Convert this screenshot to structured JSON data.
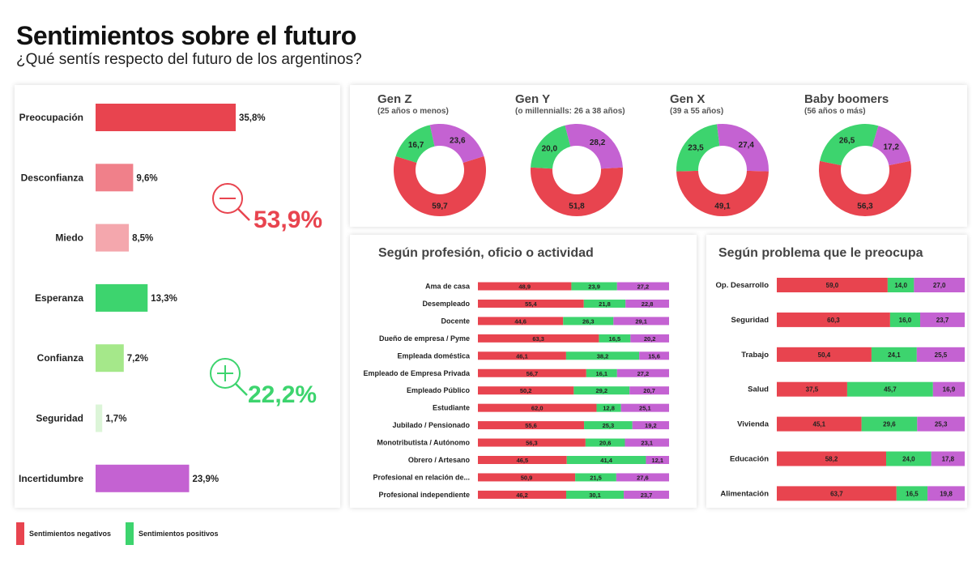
{
  "header": {
    "title": "Sentimientos sobre el futuro",
    "subtitle": "¿Qué sentís respecto del futuro de los argentinos?"
  },
  "colors": {
    "negative": "#e8444f",
    "positive": "#3dd46e",
    "purple": "#c462d2",
    "bar_desconfianza": "#f0808a",
    "bar_miedo": "#f4a7ad",
    "bar_confianza": "#a5e88a",
    "bar_seguridad": "#dcf5d8"
  },
  "summary": {
    "negative_total": "53,9%",
    "positive_total": "22,2%"
  },
  "legend": {
    "negative": "Sentimientos negativos",
    "positive": "Sentimientos positivos"
  },
  "chart_data": [
    {
      "type": "bar",
      "orientation": "horizontal",
      "categories": [
        "Preocupación",
        "Desconfianza",
        "Miedo",
        "Esperanza",
        "Confianza",
        "Seguridad",
        "Incertidumbre"
      ],
      "values": [
        35.8,
        9.6,
        8.5,
        13.3,
        7.2,
        1.7,
        23.9
      ],
      "labels": [
        "35,8%",
        "9,6%",
        "8,5%",
        "13,3%",
        "7,2%",
        "1,7%",
        "23,9%"
      ],
      "colors": [
        "#e8444f",
        "#f0808a",
        "#f4a7ad",
        "#3dd46e",
        "#a5e88a",
        "#dcf5d8",
        "#c462d2"
      ]
    },
    {
      "type": "pie",
      "donuts": [
        {
          "title": "Gen Z",
          "subtitle": "(25 años o menos)",
          "values": [
            59.7,
            16.7,
            23.6
          ],
          "labels": [
            "59,7",
            "16,7",
            "23,6"
          ]
        },
        {
          "title": "Gen Y",
          "subtitle": "(o millennialls: 26 a 38 años)",
          "values": [
            51.8,
            20.0,
            28.2
          ],
          "labels": [
            "51,8",
            "20,0",
            "28,2"
          ]
        },
        {
          "title": "Gen X",
          "subtitle": "(39 a 55 años)",
          "values": [
            49.1,
            23.5,
            27.4
          ],
          "labels": [
            "49,1",
            "23,5",
            "27,4"
          ]
        },
        {
          "title": "Baby boomers",
          "subtitle": "(56 años o más)",
          "values": [
            56.3,
            26.5,
            17.2
          ],
          "labels": [
            "56,3",
            "26,5",
            "17,2"
          ]
        }
      ]
    },
    {
      "type": "bar",
      "stacked": true,
      "title": "Según profesión, oficio o actividad",
      "rows": [
        {
          "label": "Ama de casa",
          "values": [
            48.9,
            23.9,
            27.2
          ],
          "labels": [
            "48,9",
            "23,9",
            "27,2"
          ]
        },
        {
          "label": "Desempleado",
          "values": [
            55.4,
            21.8,
            22.8
          ],
          "labels": [
            "55,4",
            "21,8",
            "22,8"
          ]
        },
        {
          "label": "Docente",
          "values": [
            44.6,
            26.3,
            29.1
          ],
          "labels": [
            "44,6",
            "26,3",
            "29,1"
          ]
        },
        {
          "label": "Dueño de empresa / Pyme",
          "values": [
            63.3,
            16.5,
            20.2
          ],
          "labels": [
            "63,3",
            "16,5",
            "20,2"
          ]
        },
        {
          "label": "Empleada doméstica",
          "values": [
            46.1,
            38.2,
            15.6
          ],
          "labels": [
            "46,1",
            "38,2",
            "15,6"
          ]
        },
        {
          "label": "Empleado de Empresa Privada",
          "values": [
            56.7,
            16.1,
            27.2
          ],
          "labels": [
            "56,7",
            "16,1",
            "27,2"
          ]
        },
        {
          "label": "Empleado Público",
          "values": [
            50.2,
            29.2,
            20.7
          ],
          "labels": [
            "50,2",
            "29,2",
            "20,7"
          ]
        },
        {
          "label": "Estudiante",
          "values": [
            62.0,
            12.8,
            25.1
          ],
          "labels": [
            "62,0",
            "12,8",
            "25,1"
          ]
        },
        {
          "label": "Jubilado / Pensionado",
          "values": [
            55.6,
            25.3,
            19.2
          ],
          "labels": [
            "55,6",
            "25,3",
            "19,2"
          ]
        },
        {
          "label": "Monotributista / Autónomo",
          "values": [
            56.3,
            20.6,
            23.1
          ],
          "labels": [
            "56,3",
            "20,6",
            "23,1"
          ]
        },
        {
          "label": "Obrero / Artesano",
          "values": [
            46.5,
            41.4,
            12.1
          ],
          "labels": [
            "46,5",
            "41,4",
            "12,1"
          ]
        },
        {
          "label": "Profesional en relación de...",
          "values": [
            50.9,
            21.5,
            27.6
          ],
          "labels": [
            "50,9",
            "21,5",
            "27,6"
          ]
        },
        {
          "label": "Profesional independiente",
          "values": [
            46.2,
            30.1,
            23.7
          ],
          "labels": [
            "46,2",
            "30,1",
            "23,7"
          ]
        }
      ]
    },
    {
      "type": "bar",
      "stacked": true,
      "title": "Según problema que le preocupa",
      "rows": [
        {
          "label": "Op. Desarrollo",
          "values": [
            59.0,
            14.0,
            27.0
          ],
          "labels": [
            "59,0",
            "14,0",
            "27,0"
          ]
        },
        {
          "label": "Seguridad",
          "values": [
            60.3,
            16.0,
            23.7
          ],
          "labels": [
            "60,3",
            "16,0",
            "23,7"
          ]
        },
        {
          "label": "Trabajo",
          "values": [
            50.4,
            24.1,
            25.5
          ],
          "labels": [
            "50,4",
            "24,1",
            "25,5"
          ]
        },
        {
          "label": "Salud",
          "values": [
            37.5,
            45.7,
            16.9
          ],
          "labels": [
            "37,5",
            "45,7",
            "16,9"
          ]
        },
        {
          "label": "Vivienda",
          "values": [
            45.1,
            29.6,
            25.3
          ],
          "labels": [
            "45,1",
            "29,6",
            "25,3"
          ]
        },
        {
          "label": "Educación",
          "values": [
            58.2,
            24.0,
            17.8
          ],
          "labels": [
            "58,2",
            "24,0",
            "17,8"
          ]
        },
        {
          "label": "Alimentación",
          "values": [
            63.7,
            16.5,
            19.8
          ],
          "labels": [
            "63,7",
            "16,5",
            "19,8"
          ]
        }
      ]
    }
  ]
}
